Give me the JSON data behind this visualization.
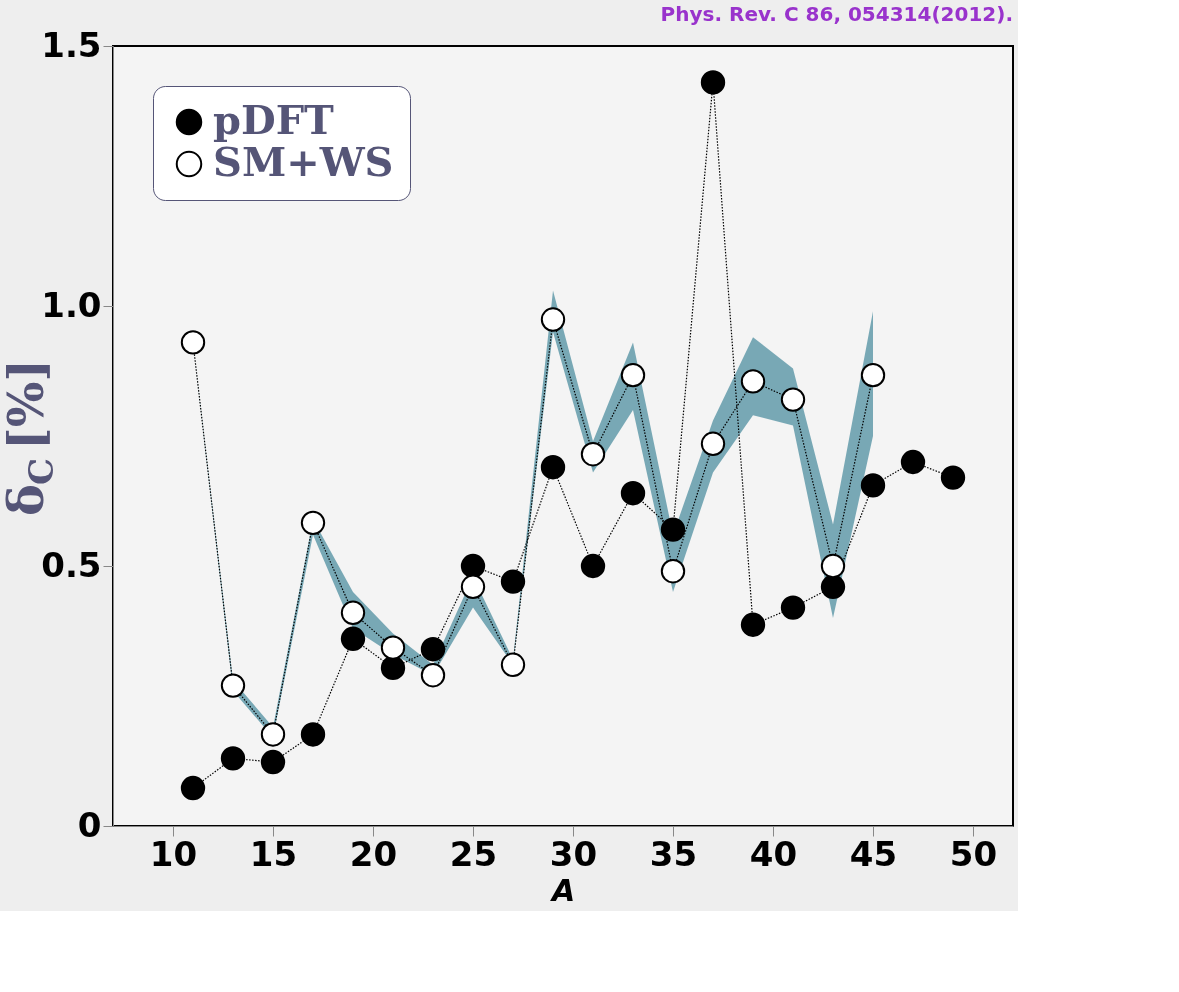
{
  "chart_data": {
    "type": "line",
    "xlabel": "A",
    "ylabel": "δ$_{C}$ [%]",
    "annotations": [
      "Phys. Rev. C 86, 054314(2012)."
    ],
    "x": [
      11,
      13,
      15,
      17,
      19,
      21,
      23,
      25,
      27,
      29,
      31,
      33,
      35,
      37,
      39,
      41,
      43,
      45,
      47,
      49
    ],
    "series": [
      {
        "name": "pDFT",
        "color": "#000000",
        "values": [
          0.073,
          0.13,
          0.123,
          0.176,
          0.36,
          0.304,
          0.34,
          0.5,
          0.47,
          0.69,
          0.5,
          0.64,
          0.57,
          1.43,
          0.387,
          0.42,
          0.46,
          0.655,
          0.7,
          0.67
        ]
      },
      {
        "name": "SM+WS",
        "color": "#ffffff",
        "values": [
          0.93,
          0.27,
          0.176,
          0.583,
          0.41,
          0.343,
          0.29,
          0.46,
          0.31,
          0.974,
          0.715,
          0.867,
          0.49,
          0.735,
          0.855,
          0.82,
          0.5,
          0.867,
          null,
          null
        ],
        "lower": [
          0.93,
          0.26,
          0.17,
          0.56,
          0.38,
          0.33,
          0.29,
          0.42,
          0.31,
          0.95,
          0.68,
          0.8,
          0.45,
          0.68,
          0.79,
          0.77,
          0.4,
          0.75,
          null,
          null
        ],
        "upper": [
          0.93,
          0.28,
          0.19,
          0.59,
          0.45,
          0.37,
          0.31,
          0.48,
          0.32,
          1.03,
          0.74,
          0.93,
          0.56,
          0.78,
          0.94,
          0.88,
          0.58,
          0.99,
          null,
          null
        ]
      }
    ],
    "xlim": [
      7,
      52
    ],
    "ylim": [
      0,
      1.5
    ],
    "xticks": [
      10,
      15,
      20,
      25,
      30,
      35,
      40,
      45,
      50
    ],
    "yticks": [
      0,
      0.5,
      {
        "value": 1.0,
        "label": "1.0"
      },
      1.5
    ],
    "legend": "top left",
    "grid": false,
    "marker": "circle",
    "line_style": "dotted"
  }
}
